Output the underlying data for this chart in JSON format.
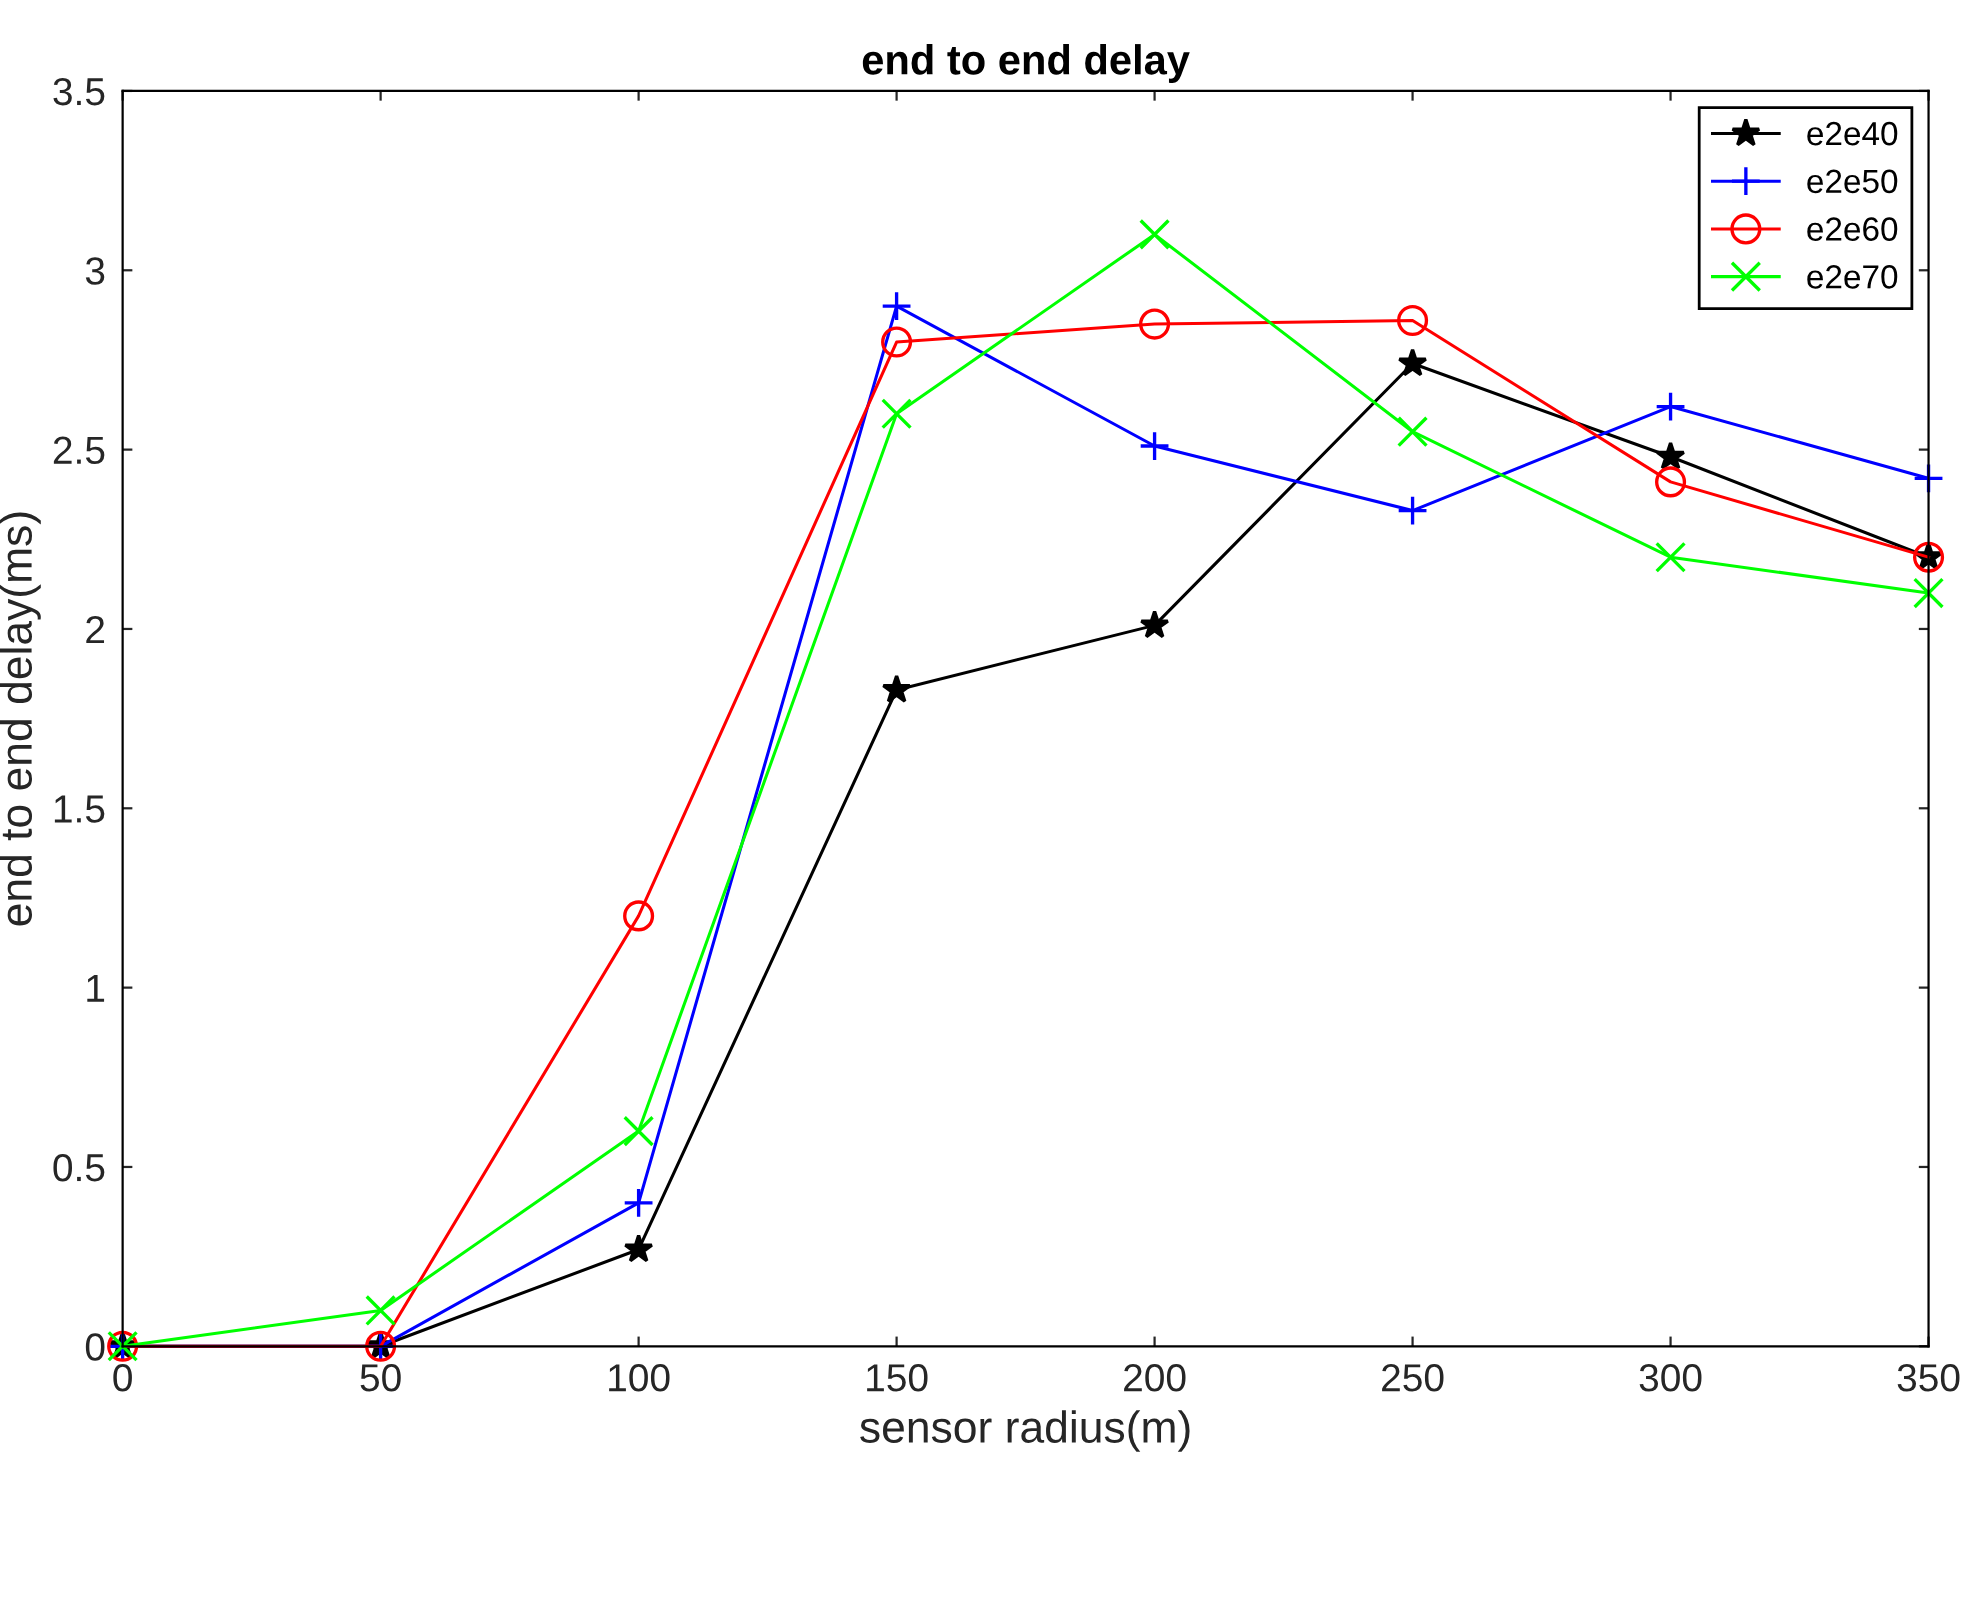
{
  "chart_data": {
    "type": "line",
    "title": "end to end delay",
    "xlabel": "sensor radius(m)",
    "ylabel": "end to end delay(ms)",
    "x": [
      0,
      50,
      100,
      150,
      200,
      250,
      300,
      350
    ],
    "series": [
      {
        "name": "e2e40",
        "color": "#000000",
        "marker": "star",
        "values": [
          0,
          0,
          0.27,
          1.83,
          2.01,
          2.74,
          2.48,
          2.2
        ]
      },
      {
        "name": "e2e50",
        "color": "#0000ff",
        "marker": "plus",
        "values": [
          0,
          0,
          0.4,
          2.9,
          2.51,
          2.33,
          2.62,
          2.42
        ]
      },
      {
        "name": "e2e60",
        "color": "#ff0000",
        "marker": "circle",
        "values": [
          0,
          0,
          1.2,
          2.8,
          2.85,
          2.86,
          2.41,
          2.2
        ]
      },
      {
        "name": "e2e70",
        "color": "#00ff00",
        "marker": "cross",
        "values": [
          0,
          0.1,
          0.6,
          2.6,
          3.1,
          2.55,
          2.2,
          2.1
        ]
      }
    ],
    "xlim": [
      0,
      350
    ],
    "xticks": [
      0,
      50,
      100,
      150,
      200,
      250,
      300,
      350
    ],
    "ylim": [
      0,
      3.5
    ],
    "yticks": [
      0,
      0.5,
      1,
      1.5,
      2,
      2.5,
      3,
      3.5
    ],
    "grid": false,
    "legend": "top right",
    "line_style": "solid"
  }
}
